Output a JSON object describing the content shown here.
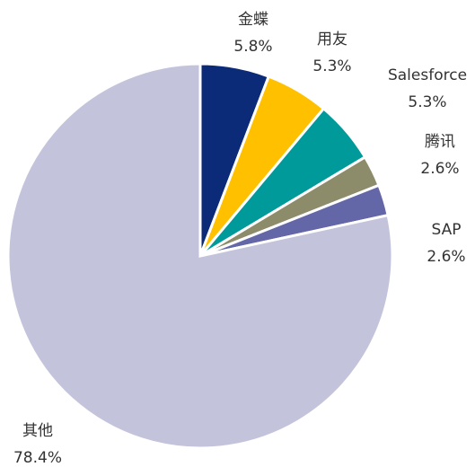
{
  "chart_data": {
    "type": "pie",
    "categories": [
      "金蝶",
      "用友",
      "Salesforce",
      "腾讯",
      "SAP",
      "其他"
    ],
    "values": [
      5.8,
      5.3,
      5.3,
      2.6,
      2.6,
      78.4
    ],
    "value_labels": [
      "5.8%",
      "5.3%",
      "5.3%",
      "2.6%",
      "2.6%",
      "78.4%"
    ],
    "colors": [
      "#0b2a78",
      "#ffc000",
      "#009a9a",
      "#8c8c6a",
      "#6367a8",
      "#c3c3dc"
    ]
  }
}
